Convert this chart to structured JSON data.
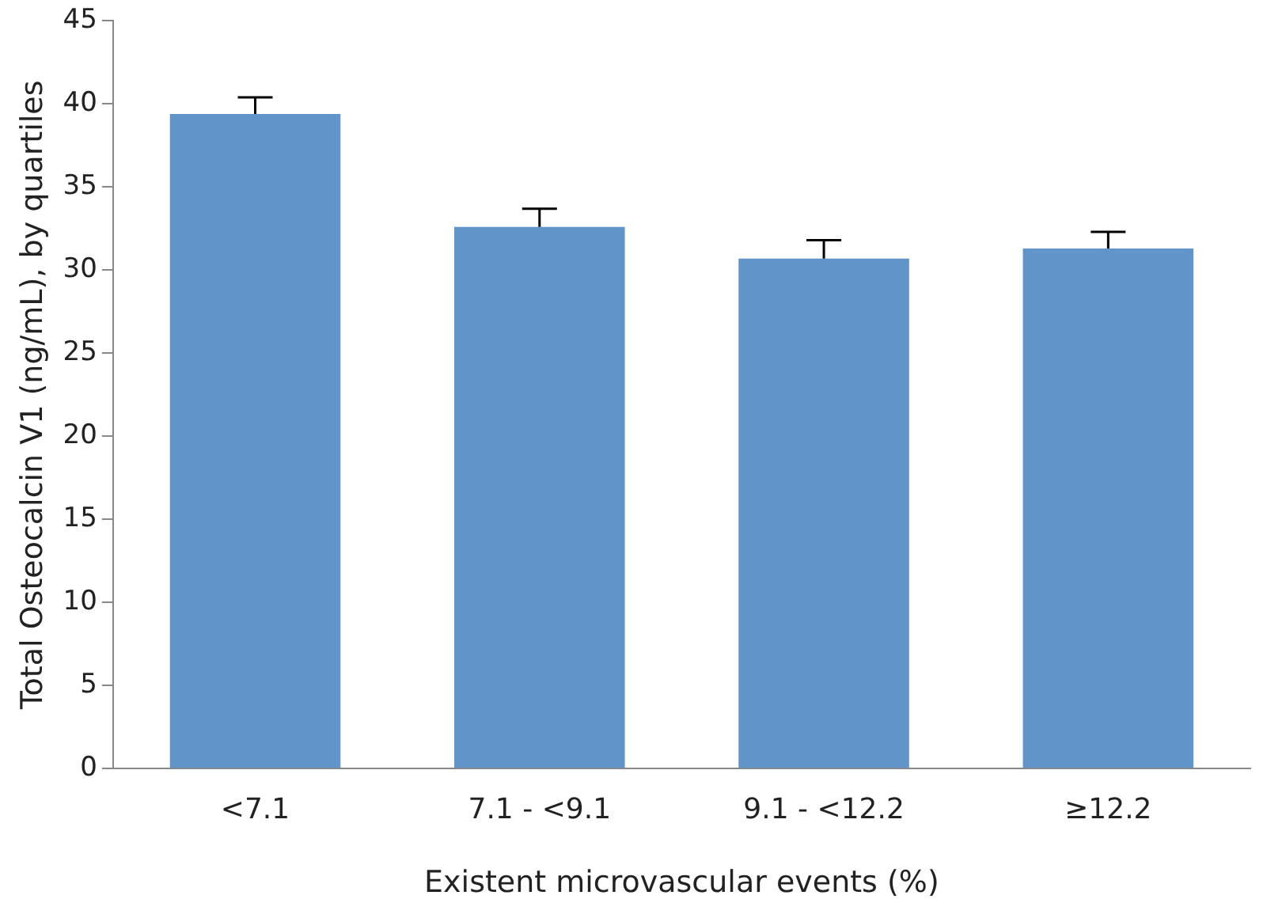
{
  "chart_data": {
    "type": "bar",
    "xlabel": "Existent microvascular events (%)",
    "ylabel": "Total Osteocalcin V1 (ng/mL), by quartiles",
    "categories": [
      "<7.1",
      "7.1 - <9.1",
      "9.1 - <12.2",
      "≥12.2"
    ],
    "values": [
      39.4,
      32.6,
      30.7,
      31.3
    ],
    "errors": [
      [
        39.4,
        40.4
      ],
      [
        32.6,
        33.7
      ],
      [
        30.7,
        31.8
      ],
      [
        31.3,
        32.3
      ]
    ],
    "color": "#6195c9",
    "ylim": [
      0,
      45
    ],
    "yticks": [
      0,
      5,
      10,
      15,
      20,
      25,
      30,
      35,
      40,
      45
    ],
    "grid": false
  }
}
